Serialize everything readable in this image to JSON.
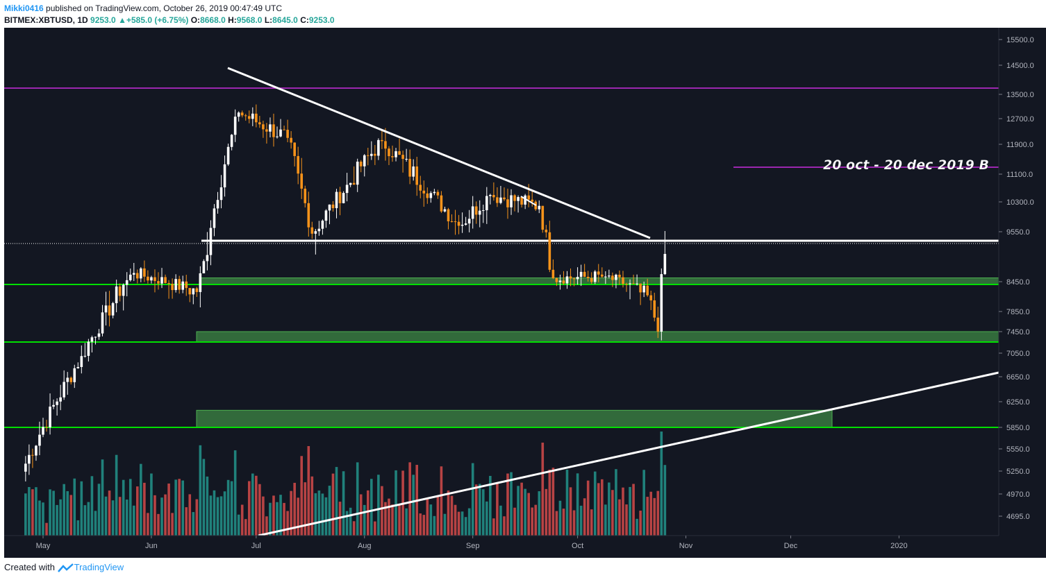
{
  "header": {
    "user": "Mikki0416",
    "published": " published on TradingView.com, October 26, 2019 00:47:49 UTC",
    "symbol": "BITMEX:XBTUSD, 1D",
    "last": "9253.0",
    "change_arrow": "▲",
    "change": "+585.0 (+6.75%)",
    "o_label": "O:",
    "o": "8668.0",
    "h_label": "H:",
    "h": "9568.0",
    "l_label": "L:",
    "l": "8645.0",
    "c_label": "C:",
    "c": "9253.0"
  },
  "footer": {
    "created_with": "Created with",
    "brand": "TradingView"
  },
  "colors": {
    "background": "#131722",
    "up_candle": "#ffffff",
    "down_candle": "#f7931a",
    "resistance_line": "#9c27b0",
    "support_line": "#00e000",
    "zone_fill": "#4caf50",
    "trendline": "#ffffff",
    "volume_up": "#26a69a",
    "volume_down": "#ef5350"
  },
  "chart_data": {
    "type": "candlestick",
    "symbol": "BITMEX:XBTUSD",
    "timeframe": "1D",
    "ylim": [
      4500,
      15800
    ],
    "y_ticks": [
      15500,
      14500,
      13500,
      12700,
      11900,
      11100,
      10300,
      9550,
      8450,
      7850,
      7450,
      7050,
      6650,
      6250,
      5850,
      5550,
      5250,
      4970,
      4695
    ],
    "y_ticks_labels": [
      "15500.0",
      "14500.0",
      "13500.0",
      "12700.0",
      "11900.0",
      "11100.0",
      "10300.0",
      "9550.0",
      "8450.0",
      "7850.0",
      "7450.0",
      "7050.0",
      "6650.0",
      "6250.0",
      "5850.0",
      "5550.0",
      "5250.0",
      "4970.0",
      "4695.0"
    ],
    "x_ticks": [
      "May",
      "Jun",
      "Jul",
      "Aug",
      "Sep",
      "Oct",
      "Nov",
      "Dec",
      "2020"
    ],
    "levels": [
      {
        "price": 13682.0,
        "label": "13682.0",
        "kind": "resistance"
      },
      {
        "price": 11201.5,
        "label": "11201.5",
        "kind": "resistance"
      },
      {
        "price": 8336.0,
        "label": "8336.0",
        "kind": "support"
      },
      {
        "price": 7240.0,
        "label": "7240.0",
        "kind": "support"
      },
      {
        "price": 5860.5,
        "label": "5860.5",
        "kind": "support"
      },
      {
        "price": 9322.0,
        "label": "9322.0",
        "kind": "horizontal"
      },
      {
        "price": 9253.0,
        "label": "9253.0",
        "kind": "last"
      }
    ],
    "zones": [
      {
        "from": 8336,
        "to": 8560
      },
      {
        "from": 7240,
        "to": 7450
      },
      {
        "from": 5860,
        "to": 6120
      }
    ],
    "annotation": "20 oct - 20 dec 2019 B",
    "anchors": [
      {
        "date": "2019-04-26",
        "price": 5350
      },
      {
        "date": "2019-05-12",
        "price": 7000
      },
      {
        "date": "2019-05-27",
        "price": 8700
      },
      {
        "date": "2019-06-14",
        "price": 8200
      },
      {
        "date": "2019-06-26",
        "price": 12900
      },
      {
        "date": "2019-07-10",
        "price": 12100
      },
      {
        "date": "2019-07-17",
        "price": 9500
      },
      {
        "date": "2019-08-06",
        "price": 12000
      },
      {
        "date": "2019-08-28",
        "price": 9700
      },
      {
        "date": "2019-09-06",
        "price": 10500
      },
      {
        "date": "2019-09-20",
        "price": 10200
      },
      {
        "date": "2019-09-24",
        "price": 8550
      },
      {
        "date": "2019-10-09",
        "price": 8600
      },
      {
        "date": "2019-10-22",
        "price": 8050
      },
      {
        "date": "2019-10-24",
        "price": 7450
      },
      {
        "date": "2019-10-25",
        "price": 8668
      },
      {
        "date": "2019-10-26",
        "price": 9253
      }
    ],
    "last_candle": {
      "open": 8668.0,
      "high": 9568.0,
      "low": 8645.0,
      "close": 9253.0
    }
  }
}
